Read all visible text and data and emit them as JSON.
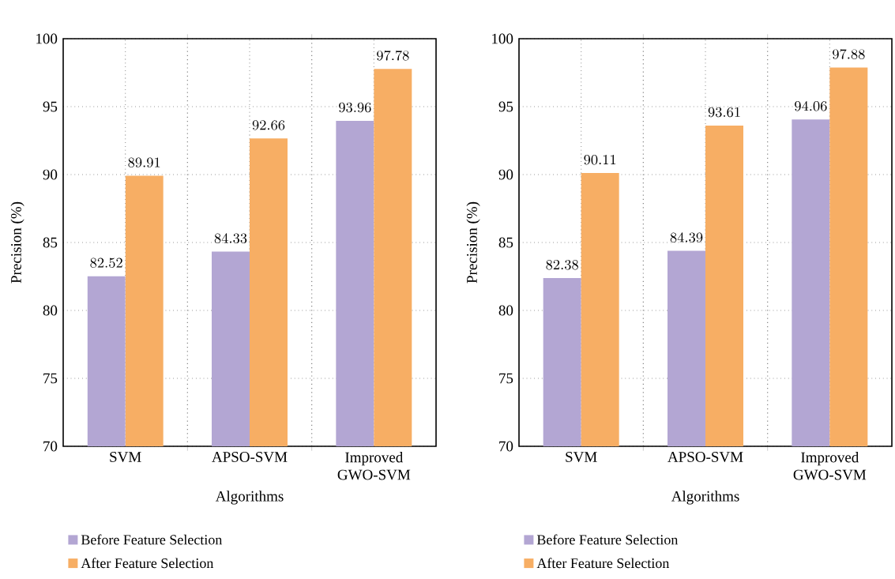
{
  "chart_data": [
    {
      "type": "bar",
      "categories": [
        "SVM",
        "APSO-SVM",
        "Improved GWO-SVM"
      ],
      "xlabel": "Algorithms",
      "ylabel": "Precision (%)",
      "ylim": [
        70,
        100
      ],
      "yticks": [
        70,
        75,
        80,
        85,
        90,
        95,
        100
      ],
      "grid": true,
      "legend": "bottom",
      "data_labels": true,
      "series": [
        {
          "name": "Before Feature Selection",
          "color": "#b3a6d3",
          "values": [
            82.52,
            84.33,
            93.96
          ]
        },
        {
          "name": "After Feature Selection",
          "color": "#f7ae64",
          "values": [
            89.91,
            92.66,
            97.78
          ]
        }
      ]
    },
    {
      "type": "bar",
      "categories": [
        "SVM",
        "APSO-SVM",
        "Improved GWO-SVM"
      ],
      "xlabel": "Algorithms",
      "ylabel": "Precision (%)",
      "ylim": [
        70,
        100
      ],
      "yticks": [
        70,
        75,
        80,
        85,
        90,
        95,
        100
      ],
      "grid": true,
      "legend": "bottom",
      "data_labels": true,
      "series": [
        {
          "name": "Before Feature Selection",
          "color": "#b3a6d3",
          "values": [
            82.38,
            84.39,
            94.06
          ]
        },
        {
          "name": "After Feature Selection",
          "color": "#f7ae64",
          "values": [
            90.11,
            93.61,
            97.88
          ]
        }
      ]
    }
  ]
}
